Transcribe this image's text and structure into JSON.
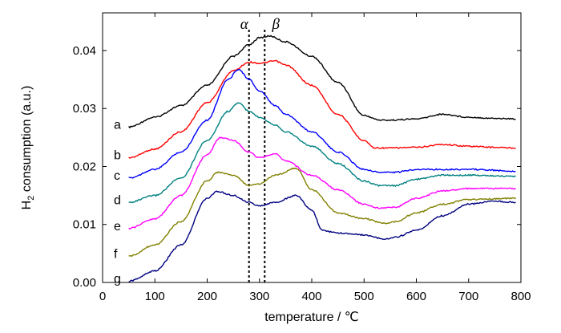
{
  "chart_data": {
    "type": "line",
    "xlabel": "temperature / ℃",
    "ylabel_main": "H",
    "ylabel_sub": "2",
    "ylabel_rest": " consumption (a.u.)",
    "xlim": [
      0,
      800
    ],
    "ylim": [
      0,
      0.0465
    ],
    "xticks": [
      0,
      100,
      200,
      300,
      400,
      500,
      600,
      700,
      800
    ],
    "xtick_labels": [
      "0",
      "100",
      "200",
      "300",
      "400",
      "500",
      "600",
      "700",
      "800"
    ],
    "yticks": [
      0.0,
      0.01,
      0.02,
      0.03,
      0.04
    ],
    "ytick_labels": [
      "0.00",
      "0.01",
      "0.02",
      "0.03",
      "0.04"
    ],
    "grid": false,
    "legend": "none",
    "reference_lines": [
      {
        "x": 280,
        "label": "α"
      },
      {
        "x": 310,
        "label": "β"
      }
    ],
    "series": [
      {
        "label": "a",
        "color": "#000000",
        "x": [
          50,
          100,
          150,
          200,
          250,
          280,
          300,
          320,
          350,
          400,
          450,
          500,
          530,
          550,
          600,
          650,
          700,
          750,
          790
        ],
        "y": [
          0.0268,
          0.0285,
          0.0305,
          0.034,
          0.039,
          0.041,
          0.0422,
          0.0425,
          0.0415,
          0.039,
          0.0345,
          0.0288,
          0.028,
          0.028,
          0.0282,
          0.029,
          0.0285,
          0.0283,
          0.0282
        ]
      },
      {
        "label": "b",
        "color": "#ff0000",
        "x": [
          50,
          100,
          150,
          200,
          250,
          280,
          300,
          330,
          350,
          400,
          450,
          500,
          520,
          550,
          600,
          650,
          700,
          750,
          790
        ],
        "y": [
          0.0215,
          0.023,
          0.026,
          0.031,
          0.0365,
          0.038,
          0.0378,
          0.0382,
          0.0375,
          0.034,
          0.029,
          0.0245,
          0.0232,
          0.0232,
          0.0233,
          0.0238,
          0.0235,
          0.0233,
          0.0232
        ]
      },
      {
        "label": "c",
        "color": "#0000ff",
        "x": [
          50,
          100,
          150,
          200,
          240,
          260,
          280,
          300,
          330,
          350,
          400,
          450,
          500,
          530,
          560,
          600,
          650,
          700,
          790
        ],
        "y": [
          0.018,
          0.0195,
          0.0225,
          0.028,
          0.035,
          0.0368,
          0.035,
          0.033,
          0.0305,
          0.029,
          0.026,
          0.0225,
          0.0195,
          0.019,
          0.019,
          0.0195,
          0.0195,
          0.0195,
          0.0192
        ]
      },
      {
        "label": "d",
        "color": "#008080",
        "x": [
          50,
          100,
          150,
          200,
          240,
          260,
          280,
          300,
          330,
          350,
          400,
          450,
          500,
          530,
          560,
          600,
          650,
          700,
          790
        ],
        "y": [
          0.0138,
          0.015,
          0.018,
          0.0245,
          0.0295,
          0.031,
          0.0295,
          0.0285,
          0.0272,
          0.026,
          0.0235,
          0.0205,
          0.0175,
          0.0167,
          0.0167,
          0.0178,
          0.0185,
          0.0185,
          0.0183
        ]
      },
      {
        "label": "e",
        "color": "#ff00ff",
        "x": [
          50,
          100,
          150,
          200,
          225,
          250,
          280,
          300,
          330,
          350,
          400,
          450,
          500,
          530,
          560,
          600,
          650,
          700,
          790
        ],
        "y": [
          0.0093,
          0.011,
          0.015,
          0.022,
          0.025,
          0.0245,
          0.0225,
          0.0215,
          0.0222,
          0.021,
          0.0185,
          0.016,
          0.0135,
          0.0128,
          0.013,
          0.0145,
          0.0158,
          0.0162,
          0.0162
        ]
      },
      {
        "label": "f",
        "color": "#808000",
        "x": [
          50,
          100,
          150,
          200,
          220,
          250,
          280,
          300,
          330,
          370,
          400,
          450,
          500,
          540,
          560,
          600,
          650,
          700,
          790
        ],
        "y": [
          0.0045,
          0.0065,
          0.0105,
          0.0175,
          0.019,
          0.0185,
          0.0167,
          0.017,
          0.0185,
          0.0197,
          0.016,
          0.012,
          0.011,
          0.0102,
          0.0105,
          0.012,
          0.0135,
          0.0143,
          0.0145
        ]
      },
      {
        "label": "g",
        "color": "#000080",
        "x": [
          50,
          100,
          150,
          200,
          220,
          250,
          280,
          300,
          330,
          370,
          400,
          420,
          450,
          500,
          540,
          560,
          600,
          650,
          700,
          750,
          790
        ],
        "y": [
          0.0002,
          0.002,
          0.0065,
          0.0145,
          0.0157,
          0.015,
          0.0138,
          0.0132,
          0.0138,
          0.015,
          0.0125,
          0.009,
          0.0085,
          0.0082,
          0.0075,
          0.0078,
          0.009,
          0.0115,
          0.0135,
          0.014,
          0.0138
        ]
      }
    ]
  }
}
